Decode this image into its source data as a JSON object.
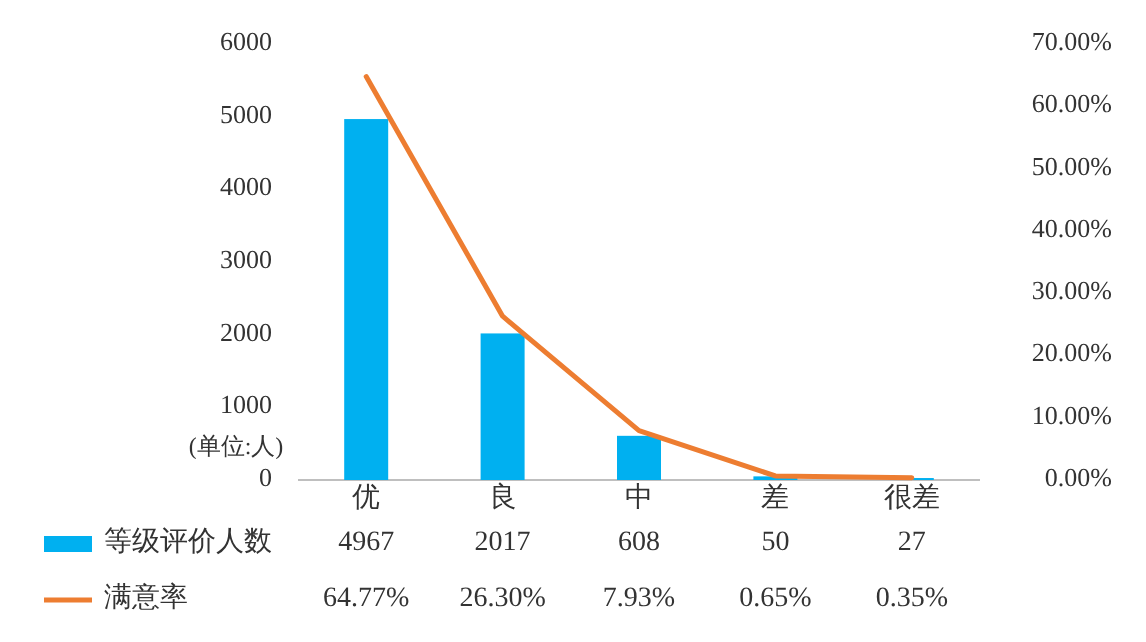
{
  "chart_data": {
    "type": "bar",
    "categories": [
      "优",
      "良",
      "中",
      "差",
      "很差"
    ],
    "series": [
      {
        "name": "等级评价人数",
        "color": "#00b0f0",
        "values": [
          4967,
          2017,
          608,
          50,
          27
        ],
        "value_labels": [
          "4967",
          "2017",
          "608",
          "50",
          "27"
        ]
      },
      {
        "name": "满意率",
        "type": "line",
        "axis": "y2",
        "color": "#ed7d31",
        "values": [
          64.77,
          26.3,
          7.93,
          0.65,
          0.35
        ],
        "value_labels": [
          "64.77%",
          "26.30%",
          "7.93%",
          "0.65%",
          "0.35%"
        ]
      }
    ],
    "ylim": [
      0,
      6000
    ],
    "yticks": [
      0,
      1000,
      2000,
      3000,
      4000,
      5000,
      6000
    ],
    "y2lim": [
      0,
      70
    ],
    "y2ticks": [
      {
        "value": 0,
        "label": "0.00%"
      },
      {
        "value": 10,
        "label": "10.00%"
      },
      {
        "value": 20,
        "label": "20.00%"
      },
      {
        "value": 30,
        "label": "30.00%"
      },
      {
        "value": 40,
        "label": "40.00%"
      },
      {
        "value": 50,
        "label": "50.00%"
      },
      {
        "value": 60,
        "label": "60.00%"
      },
      {
        "value": 70,
        "label": "70.00%"
      }
    ],
    "annotations": [
      "(单位:人)"
    ],
    "legend": "bottom"
  }
}
